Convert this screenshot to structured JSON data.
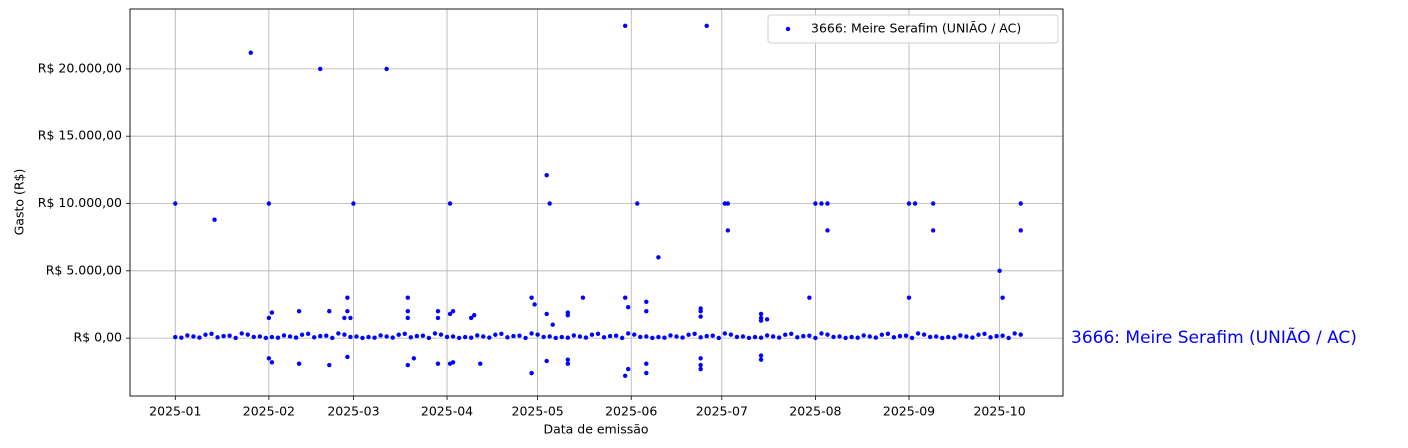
{
  "chart_data": {
    "type": "scatter",
    "xlabel": "Data de emissão",
    "ylabel": "Gasto (R$)",
    "annotation": "3666: Meire Serafim (UNIÃO / AC)",
    "legend": "upper right",
    "grid": true,
    "xlim": [
      -15,
      294
    ],
    "xticks": [
      {
        "value": 0,
        "label": "2025-01"
      },
      {
        "value": 31,
        "label": "2025-02"
      },
      {
        "value": 59,
        "label": "2025-03"
      },
      {
        "value": 90,
        "label": "2025-04"
      },
      {
        "value": 120,
        "label": "2025-05"
      },
      {
        "value": 151,
        "label": "2025-06"
      },
      {
        "value": 181,
        "label": "2025-07"
      },
      {
        "value": 212,
        "label": "2025-08"
      },
      {
        "value": 243,
        "label": "2025-09"
      },
      {
        "value": 273,
        "label": "2025-10"
      }
    ],
    "ylim": [
      -4300,
      24450
    ],
    "yticks": [
      {
        "value": 0,
        "label": "R$ 0,00"
      },
      {
        "value": 5000,
        "label": "R$ 5.000,00"
      },
      {
        "value": 10000,
        "label": "R$ 10.000,00"
      },
      {
        "value": 15000,
        "label": "R$ 15.000,00"
      },
      {
        "value": 20000,
        "label": "R$ 20.000,00"
      }
    ],
    "x": [
      0,
      13,
      25,
      31,
      31,
      32,
      31,
      32,
      41,
      41,
      48,
      51,
      51,
      56,
      57,
      58,
      57,
      57,
      59,
      70,
      77,
      77,
      77,
      77,
      79,
      87,
      87,
      87,
      91,
      91,
      92,
      91,
      92,
      98,
      99,
      101,
      118,
      119,
      118,
      123,
      123,
      124,
      125,
      123,
      130,
      130,
      130,
      130,
      135,
      149,
      149,
      150,
      149,
      150,
      153,
      156,
      156,
      156,
      156,
      160,
      176,
      174,
      174,
      174,
      174,
      174,
      174,
      182,
      183,
      183,
      194,
      194,
      194,
      194,
      194,
      196,
      210,
      212,
      214,
      216,
      216,
      243,
      243,
      245,
      251,
      251,
      273,
      274,
      280,
      280,
      0,
      4,
      8,
      12,
      16,
      20,
      24,
      28,
      32,
      36,
      40,
      44,
      48,
      52,
      56,
      60,
      64,
      68,
      72,
      76,
      80,
      84,
      88,
      92,
      96,
      100,
      104,
      108,
      112,
      116,
      120,
      124,
      128,
      132,
      136,
      140,
      144,
      148,
      152,
      156,
      160,
      164,
      168,
      172,
      176,
      180,
      184,
      188,
      192,
      196,
      200,
      204,
      208,
      212,
      216,
      220,
      224,
      228,
      232,
      236,
      240,
      244,
      248,
      252,
      256,
      260,
      264,
      268,
      272,
      276,
      280,
      2,
      6,
      10,
      14,
      18,
      22,
      26,
      30,
      34,
      38,
      42,
      46,
      50,
      54,
      58,
      62,
      66,
      70,
      74,
      78,
      82,
      86,
      90,
      94,
      98,
      102,
      106,
      110,
      114,
      118,
      122,
      126,
      130,
      134,
      138,
      142,
      146,
      150,
      154,
      158,
      162,
      166,
      170,
      174,
      178,
      182,
      186,
      190,
      194,
      198,
      202,
      206,
      210,
      214,
      218,
      222,
      226,
      230,
      234,
      238,
      242,
      246,
      250,
      254,
      258,
      262,
      266,
      270,
      274,
      278
    ],
    "series": [
      {
        "name": "3666: Meire Serafim (UNIÃO / AC)",
        "color": "#0000ff",
        "values": [
          10000,
          8800,
          21200,
          10000,
          1500,
          1900,
          -1500,
          -1800,
          2000,
          -1900,
          20000,
          2000,
          -2000,
          1500,
          2000,
          1500,
          3000,
          -1400,
          10000,
          20000,
          3000,
          2000,
          1500,
          -2000,
          -1500,
          2000,
          1500,
          -1900,
          10000,
          1800,
          2000,
          -1900,
          -1800,
          1500,
          1700,
          -1900,
          3000,
          2500,
          -2600,
          12100,
          1800,
          10000,
          1000,
          -1700,
          1900,
          1700,
          -1600,
          -1900,
          3000,
          23200,
          3000,
          2300,
          -2800,
          -2300,
          10000,
          2700,
          2000,
          -1900,
          -2600,
          6000,
          23200,
          2200,
          2000,
          1600,
          -1500,
          -2000,
          -2300,
          10000,
          10000,
          8000,
          1800,
          1500,
          1300,
          -1300,
          -1600,
          1400,
          3000,
          10000,
          10000,
          10000,
          8000,
          10000,
          3000,
          10000,
          10000,
          8000,
          5000,
          3000,
          10000,
          8000,
          80,
          200,
          40,
          320,
          150,
          10,
          260,
          120,
          80,
          200,
          40,
          320,
          150,
          10,
          260,
          120,
          80,
          200,
          40,
          320,
          150,
          10,
          260,
          120,
          80,
          200,
          40,
          320,
          150,
          10,
          260,
          120,
          80,
          200,
          40,
          320,
          150,
          10,
          260,
          120,
          80,
          200,
          40,
          320,
          150,
          10,
          260,
          120,
          80,
          200,
          40,
          320,
          150,
          10,
          260,
          120,
          80,
          200,
          40,
          320,
          150,
          10,
          260,
          120,
          80,
          200,
          40,
          320,
          150,
          10,
          260,
          30,
          120,
          250,
          60,
          180,
          350,
          90,
          15,
          30,
          120,
          250,
          60,
          180,
          350,
          90,
          15,
          30,
          120,
          250,
          60,
          180,
          350,
          90,
          15,
          30,
          120,
          250,
          60,
          180,
          350,
          90,
          15,
          30,
          120,
          250,
          60,
          180,
          350,
          90,
          15,
          30,
          120,
          250,
          60,
          180,
          350,
          90,
          15,
          30,
          120,
          250,
          60,
          180,
          350,
          90,
          15,
          30,
          120,
          250,
          60,
          180,
          350,
          90,
          15,
          30,
          120,
          250,
          60,
          180,
          350
        ]
      }
    ]
  }
}
